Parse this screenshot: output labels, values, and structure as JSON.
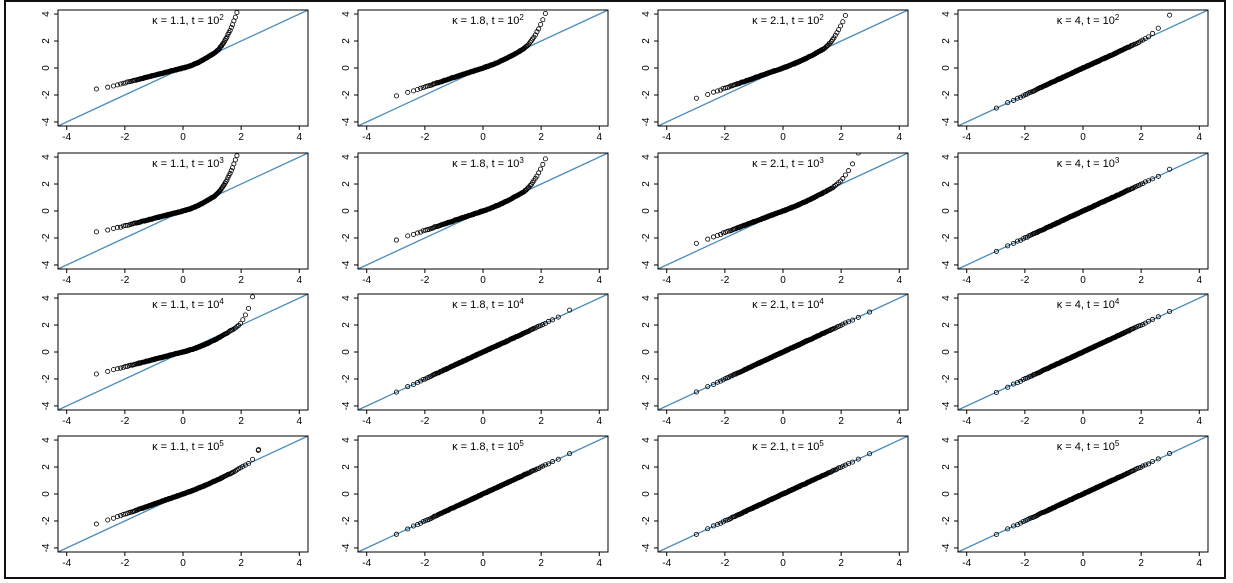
{
  "chart_data": {
    "type": "scatter",
    "kind": "normal Q-Q plot grid",
    "rows": 4,
    "cols": 4,
    "xlim": [
      -4.3,
      4.3
    ],
    "ylim": [
      -4.3,
      4.3
    ],
    "x_ticks": [
      "-4",
      "-2",
      "0",
      "2",
      "4"
    ],
    "x_tick_values": [
      -4,
      -2,
      0,
      2,
      4
    ],
    "y_ticks": [
      "-4",
      "-2",
      "0",
      "2",
      "4"
    ],
    "y_tick_values": [
      -4,
      -2,
      0,
      2,
      4
    ],
    "reference_line": {
      "slope": 1,
      "intercept": 0,
      "color": "#4a8bb8"
    },
    "point_color": "#000000",
    "panels": [
      {
        "title_main": "κ = 1.1, t = 10",
        "title_exp": "2",
        "kappa": 1.1,
        "t": 100,
        "x_min": -3.8,
        "x_max": 2.4,
        "low_shape": [
          -1.6,
          0.55
        ],
        "high_knee": 1.0,
        "high_curv": 1.4
      },
      {
        "title_main": "κ = 1.8, t = 10",
        "title_exp": "2",
        "kappa": 1.8,
        "t": 100,
        "x_min": -3.6,
        "x_max": 2.6,
        "low_shape": [
          -2.6,
          0.7
        ],
        "high_knee": 1.3,
        "high_curv": 1.2
      },
      {
        "title_main": "κ = 2.1, t = 10",
        "title_exp": "2",
        "kappa": 2.1,
        "t": 100,
        "x_min": -3.6,
        "x_max": 2.7,
        "low_shape": [
          -2.9,
          0.75
        ],
        "high_knee": 1.3,
        "high_curv": 1.1
      },
      {
        "title_main": "κ = 4, t = 10",
        "title_exp": "2",
        "kappa": 4,
        "t": 100,
        "x_min": -3.5,
        "x_max": 3.4,
        "low_shape": [
          -2.9,
          0.95
        ],
        "high_knee": 2.0,
        "high_curv": 0.45
      },
      {
        "title_main": "κ = 1.1, t = 10",
        "title_exp": "3",
        "kappa": 1.1,
        "t": 1000,
        "x_min": -3.8,
        "x_max": 2.4,
        "low_shape": [
          -1.6,
          0.55
        ],
        "high_knee": 1.0,
        "high_curv": 1.4
      },
      {
        "title_main": "κ = 1.8, t = 10",
        "title_exp": "3",
        "kappa": 1.8,
        "t": 1000,
        "x_min": -3.6,
        "x_max": 2.6,
        "low_shape": [
          -2.8,
          0.72
        ],
        "high_knee": 1.3,
        "high_curv": 1.1
      },
      {
        "title_main": "κ = 2.1, t = 10",
        "title_exp": "3",
        "kappa": 2.1,
        "t": 1000,
        "x_min": -3.6,
        "x_max": 3.0,
        "low_shape": [
          -3.0,
          0.8
        ],
        "high_knee": 1.6,
        "high_curv": 0.8
      },
      {
        "title_main": "κ = 4, t = 10",
        "title_exp": "3",
        "kappa": 4,
        "t": 1000,
        "x_min": -3.5,
        "x_max": 3.7,
        "low_shape": [
          -3.3,
          0.98
        ],
        "high_knee": 2.5,
        "high_curv": 0.2
      },
      {
        "title_main": "κ = 1.1, t = 10",
        "title_exp": "4",
        "kappa": 1.1,
        "t": 10000,
        "x_min": -3.8,
        "x_max": 2.5,
        "low_shape": [
          -2.8,
          0.55
        ],
        "high_knee": 1.8,
        "high_curv": 2.2
      },
      {
        "title_main": "κ = 1.8, t = 10",
        "title_exp": "4",
        "kappa": 1.8,
        "t": 10000,
        "x_min": -3.7,
        "x_max": 3.4,
        "low_shape": [
          -3.6,
          0.97
        ],
        "high_knee": 2.6,
        "high_curv": 0.4
      },
      {
        "title_main": "κ = 2.1, t = 10",
        "title_exp": "4",
        "kappa": 2.1,
        "t": 10000,
        "x_min": -3.8,
        "x_max": 3.6,
        "low_shape": [
          -3.8,
          0.99
        ],
        "high_knee": 2.9,
        "high_curv": 0.3
      },
      {
        "title_main": "κ = 4, t = 10",
        "title_exp": "4",
        "kappa": 4,
        "t": 10000,
        "x_min": -3.6,
        "x_max": 3.7,
        "low_shape": [
          -3.6,
          1.0
        ],
        "high_knee": 3.4,
        "high_curv": 0.05
      },
      {
        "title_main": "κ = 1.1, t = 10",
        "title_exp": "5",
        "kappa": 1.1,
        "t": 100000,
        "x_min": -3.8,
        "x_max": 2.6,
        "low_shape": [
          -3.6,
          0.75
        ],
        "high_knee": 2.2,
        "high_curv": 2.0
      },
      {
        "title_main": "κ = 1.8, t = 10",
        "title_exp": "5",
        "kappa": 1.8,
        "t": 100000,
        "x_min": -3.7,
        "x_max": 3.8,
        "low_shape": [
          -3.6,
          1.0
        ],
        "high_knee": 3.3,
        "high_curv": 0.25
      },
      {
        "title_main": "κ = 2.1, t = 10",
        "title_exp": "5",
        "kappa": 2.1,
        "t": 100000,
        "x_min": -3.8,
        "x_max": 3.8,
        "low_shape": [
          -3.8,
          1.0
        ],
        "high_knee": 3.6,
        "high_curv": 0.1
      },
      {
        "title_main": "κ = 4, t = 10",
        "title_exp": "5",
        "kappa": 4,
        "t": 100000,
        "x_min": -3.8,
        "x_max": 3.8,
        "low_shape": [
          -3.8,
          1.0
        ],
        "high_knee": 3.8,
        "high_curv": 0.0
      }
    ]
  }
}
